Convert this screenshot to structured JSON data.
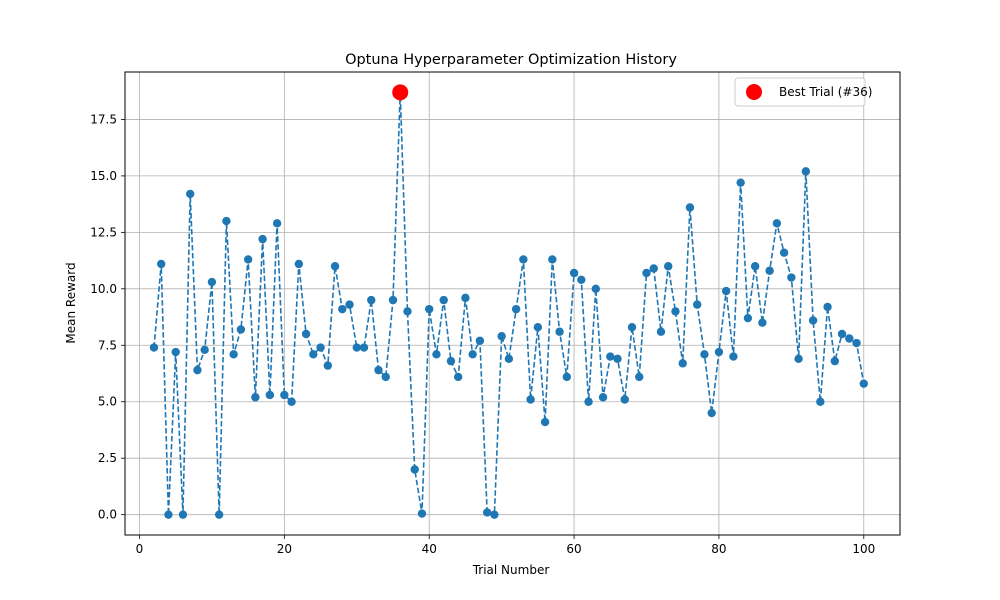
{
  "chart_data": {
    "type": "line",
    "title": "Optuna Hyperparameter Optimization History",
    "xlabel": "Trial Number",
    "ylabel": "Mean Reward",
    "xlim": [
      -2,
      105
    ],
    "ylim": [
      -0.9,
      19.6
    ],
    "xticks": [
      0,
      20,
      40,
      60,
      80,
      100
    ],
    "xtick_labels": [
      "0",
      "20",
      "40",
      "60",
      "80",
      "100"
    ],
    "yticks": [
      0,
      2.5,
      5,
      7.5,
      10,
      12.5,
      15,
      17.5
    ],
    "ytick_labels": [
      "0.0",
      "2.5",
      "5.0",
      "7.5",
      "10.0",
      "12.5",
      "15.0",
      "17.5"
    ],
    "grid": true,
    "legend_position": "top-right",
    "series": [
      {
        "color": "#1f77b4",
        "line_style": "dashed",
        "marker": "circle",
        "x": [
          2,
          3,
          4,
          5,
          6,
          7,
          8,
          9,
          10,
          11,
          12,
          13,
          14,
          15,
          16,
          17,
          18,
          19,
          20,
          21,
          22,
          23,
          24,
          25,
          26,
          27,
          28,
          29,
          30,
          31,
          32,
          33,
          34,
          35,
          36,
          37,
          38,
          39,
          40,
          41,
          42,
          43,
          44,
          45,
          46,
          47,
          48,
          49,
          50,
          51,
          52,
          53,
          54,
          55,
          56,
          57,
          58,
          59,
          60,
          61,
          62,
          63,
          64,
          65,
          66,
          67,
          68,
          69,
          70,
          71,
          72,
          73,
          74,
          75,
          76,
          77,
          78,
          79,
          80,
          81,
          82,
          83,
          84,
          85,
          86,
          87,
          88,
          89,
          90,
          91,
          92,
          93,
          94,
          95,
          96,
          97,
          98,
          99,
          100
        ],
        "y": [
          7.4,
          11.1,
          0.0,
          7.2,
          0.0,
          14.2,
          6.4,
          7.3,
          10.3,
          0.0,
          13.0,
          7.1,
          8.2,
          11.3,
          5.2,
          12.2,
          5.3,
          12.9,
          5.3,
          5.0,
          11.1,
          8.0,
          7.1,
          7.4,
          6.6,
          11.0,
          9.1,
          9.3,
          7.4,
          7.4,
          9.5,
          6.4,
          6.1,
          9.5,
          18.7,
          9.0,
          2.0,
          0.05,
          9.1,
          7.1,
          9.5,
          6.8,
          6.1,
          9.6,
          7.1,
          7.7,
          0.1,
          0.0,
          7.9,
          6.9,
          9.1,
          11.3,
          5.1,
          8.3,
          4.1,
          11.3,
          8.1,
          6.1,
          10.7,
          10.4,
          5.0,
          10.0,
          5.2,
          7.0,
          6.9,
          5.1,
          8.3,
          6.1,
          10.7,
          10.9,
          8.1,
          11.0,
          9.0,
          6.7,
          13.6,
          9.3,
          7.1,
          4.5,
          7.2,
          9.9,
          7.0,
          14.7,
          8.7,
          11.0,
          8.5,
          10.8,
          12.9,
          11.6,
          10.5,
          6.9,
          15.2,
          8.6,
          5.0,
          9.2,
          6.8,
          8.0,
          7.8,
          7.6,
          5.8
        ]
      }
    ],
    "best_trial": {
      "label": "Best Trial (#36)",
      "x": 36,
      "y": 18.7,
      "color": "#ff0000"
    }
  }
}
